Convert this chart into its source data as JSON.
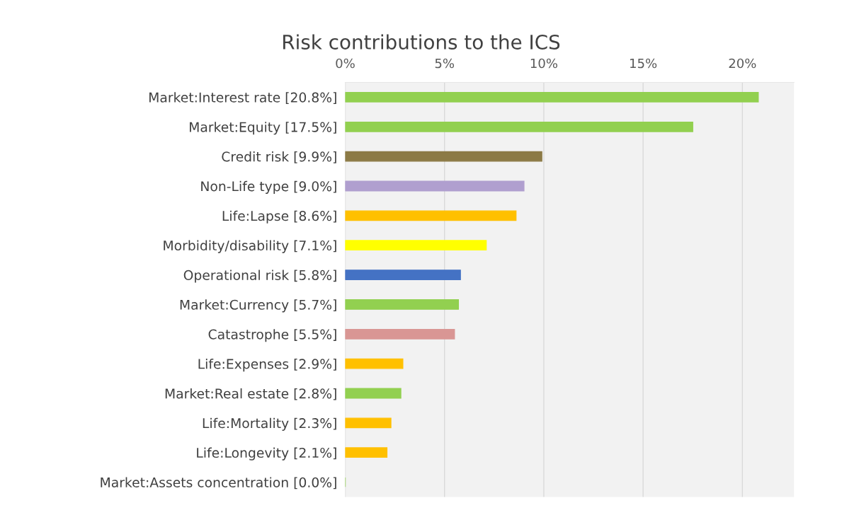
{
  "chart_data": {
    "type": "bar",
    "orientation": "horizontal",
    "title": "Risk contributions to the ICS",
    "categories": [
      "Market:Interest rate [20.8%]",
      "Market:Equity [17.5%]",
      "Credit risk [9.9%]",
      "Non-Life type [9.0%]",
      "Life:Lapse [8.6%]",
      "Morbidity/disability [7.1%]",
      "Operational risk [5.8%]",
      "Market:Currency [5.7%]",
      "Catastrophe [5.5%]",
      "Life:Expenses [2.9%]",
      "Market:Real estate [2.8%]",
      "Life:Mortality [2.3%]",
      "Life:Longevity [2.1%]",
      "Market:Assets concentration [0.0%]"
    ],
    "values": [
      20.8,
      17.5,
      9.9,
      9.0,
      8.6,
      7.1,
      5.8,
      5.7,
      5.5,
      2.9,
      2.8,
      2.3,
      2.1,
      0.0
    ],
    "colors": [
      "#92d050",
      "#92d050",
      "#8c7a45",
      "#b09fcf",
      "#ffc000",
      "#ffff00",
      "#4472c4",
      "#92d050",
      "#d99694",
      "#ffc000",
      "#92d050",
      "#ffc000",
      "#ffc000",
      "#92d050"
    ],
    "xlim": [
      0,
      22.6
    ],
    "xticks": [
      {
        "value": 0,
        "label": "0%"
      },
      {
        "value": 5,
        "label": "5%"
      },
      {
        "value": 10,
        "label": "10%"
      },
      {
        "value": 15,
        "label": "15%"
      },
      {
        "value": 20,
        "label": "20%"
      }
    ],
    "grid": "x",
    "legend": false
  }
}
